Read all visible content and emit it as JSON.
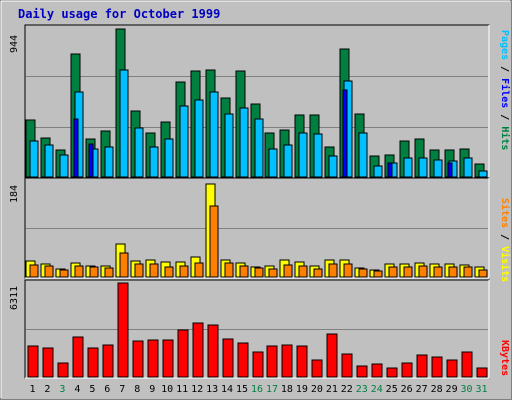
{
  "chart_data": {
    "type": "bar",
    "title": "Daily usage for October 1999",
    "categories": [
      "1",
      "2",
      "3",
      "4",
      "5",
      "6",
      "7",
      "8",
      "9",
      "10",
      "11",
      "12",
      "13",
      "14",
      "15",
      "16",
      "17",
      "18",
      "19",
      "20",
      "21",
      "22",
      "23",
      "24",
      "25",
      "26",
      "27",
      "28",
      "29",
      "30",
      "31"
    ],
    "weekend_days": [
      "3",
      "16",
      "17",
      "23",
      "24",
      "30",
      "31"
    ],
    "panels": [
      {
        "name": "hits-files-pages",
        "ylabel": "944",
        "ymax": 944,
        "legend": [
          "Pages",
          "Files",
          "Hits"
        ],
        "series": [
          {
            "name": "Hits",
            "color": "#008040",
            "values": [
              360,
              250,
              170,
              780,
              240,
              290,
              940,
              420,
              280,
              350,
              600,
              670,
              680,
              500,
              670,
              460,
              280,
              300,
              390,
              390,
              190,
              810,
              400,
              130,
              140,
              230,
              240,
              170,
              170,
              180,
              80
            ]
          },
          {
            "name": "Files",
            "color": "#00c0ff",
            "values": [
              230,
              200,
              140,
              540,
              180,
              190,
              680,
              310,
              190,
              240,
              450,
              490,
              540,
              400,
              440,
              370,
              180,
              200,
              280,
              270,
              130,
              610,
              280,
              70,
              90,
              120,
              120,
              110,
              100,
              120,
              40
            ]
          },
          {
            "name": "Pages",
            "color": "#0000ff",
            "values": [
              0,
              0,
              0,
              370,
              210,
              0,
              0,
              0,
              0,
              0,
              0,
              0,
              0,
              0,
              0,
              0,
              0,
              0,
              0,
              0,
              0,
              550,
              0,
              0,
              90,
              0,
              0,
              0,
              90,
              0,
              0
            ]
          }
        ]
      },
      {
        "name": "visits-sites",
        "ylabel": "184",
        "ymax": 184,
        "legend": [
          "Sites",
          "Visits"
        ],
        "series": [
          {
            "name": "Visits",
            "color": "#ffff00",
            "values": [
              31,
              26,
              15,
              27,
              21,
              21,
              65,
              32,
              33,
              29,
              29,
              39,
              184,
              33,
              28,
              19,
              21,
              33,
              29,
              21,
              33,
              33,
              18,
              14,
              25,
              26,
              27,
              25,
              25,
              23,
              19
            ]
          },
          {
            "name": "Sites",
            "color": "#ff8000",
            "values": [
              23,
              22,
              13,
              21,
              20,
              18,
              48,
              25,
              25,
              20,
              22,
              27,
              140,
              28,
              22,
              17,
              16,
              24,
              22,
              16,
              26,
              25,
              15,
              12,
              19,
              20,
              21,
              20,
              20,
              20,
              14
            ]
          }
        ]
      },
      {
        "name": "kbytes",
        "ylabel": "6311",
        "ymax": 6311,
        "legend": [
          "KBytes"
        ],
        "series": [
          {
            "name": "KBytes",
            "color": "#ff0000",
            "values": [
              2100,
              1950,
              920,
              2700,
              1950,
              2150,
              6311,
              2400,
              2500,
              2500,
              3150,
              3600,
              3500,
              2550,
              2300,
              1650,
              2100,
              2150,
              2100,
              1170,
              2900,
              1550,
              750,
              870,
              600,
              920,
              1470,
              1350,
              1170,
              1670,
              600
            ]
          }
        ]
      }
    ]
  }
}
